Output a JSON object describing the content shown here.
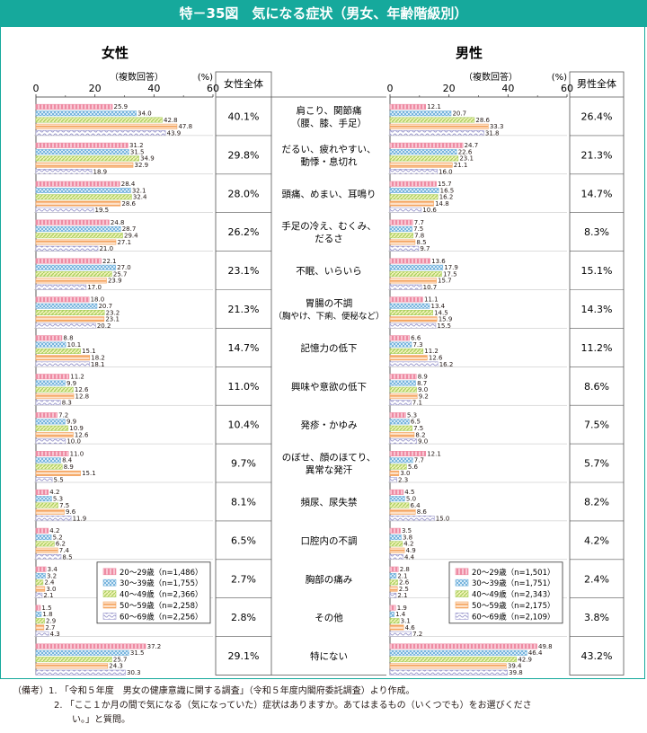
{
  "title": "特－35図　気になる症状（男女、年齢階級別）",
  "colors": {
    "accent": "#16a99c",
    "series": [
      "#ee8ba3",
      "#78b4dd",
      "#a8cf5e",
      "#f4a45f",
      "#9a97cc"
    ]
  },
  "panels": {
    "female": {
      "heading": "女性",
      "note": "（複数回答）",
      "unit": "(%)",
      "total_header": "女性全体"
    },
    "male": {
      "heading": "男性",
      "note": "（複数回答）",
      "unit": "(%)",
      "total_header": "男性全体"
    }
  },
  "axis_ticks": [
    "0",
    "20",
    "40",
    "60"
  ],
  "notes": [
    {
      "prefix": "（備考）",
      "num": "1.",
      "text": "「令和５年度　男女の健康意識に関する調査」（令和５年度内閣府委託調査）より作成。"
    },
    {
      "prefix": "",
      "num": "2.",
      "text": "「ここ１か月の間で気になる（気になっていた）症状はありますか。あてはまるもの（いくつでも）をお選びくださ"
    },
    {
      "prefix": "",
      "num": "",
      "text": "い。」と質問。"
    }
  ],
  "chart_data": [
    {
      "type": "bar",
      "orientation": "horizontal",
      "panel": "女性",
      "xlim": [
        0,
        60
      ],
      "categories": [
        "肩こり、関節痛\n（腰、膝、手足）",
        "だるい、疲れやすい、\n動悸・息切れ",
        "頭痛、めまい、耳鳴り",
        "手足の冷え、むくみ、\nだるさ",
        "不眠、いらいら",
        "胃腸の不調\n（胸やけ、下痢、便秘など）",
        "記憶力の低下",
        "興味や意欲の低下",
        "発疹・かゆみ",
        "のぼせ、顔のほてり、\n異常な発汗",
        "頻尿、尿失禁",
        "口腔内の不調",
        "胸部の痛み",
        "その他",
        "特にない"
      ],
      "series": [
        {
          "name": "20～29歳（n=1,486）",
          "values": [
            25.9,
            31.2,
            28.4,
            24.8,
            22.1,
            18.0,
            8.8,
            11.2,
            7.2,
            11.0,
            4.2,
            4.2,
            3.4,
            1.5,
            37.2
          ]
        },
        {
          "name": "30～39歳（n=1,755）",
          "values": [
            34.0,
            31.5,
            32.1,
            28.7,
            27.0,
            20.7,
            10.1,
            9.9,
            9.9,
            8.4,
            5.3,
            5.2,
            3.2,
            1.8,
            31.5
          ]
        },
        {
          "name": "40～49歳（n=2,366）",
          "values": [
            42.8,
            34.9,
            32.4,
            29.4,
            25.7,
            23.2,
            15.1,
            12.6,
            10.9,
            8.9,
            7.5,
            6.2,
            2.4,
            2.9,
            25.7
          ]
        },
        {
          "name": "50～59歳（n=2,258）",
          "values": [
            47.8,
            32.9,
            28.6,
            27.1,
            23.9,
            23.1,
            18.2,
            12.8,
            12.6,
            15.1,
            9.6,
            7.4,
            3.0,
            2.7,
            24.3
          ]
        },
        {
          "name": "60～69歳（n=2,256）",
          "values": [
            43.9,
            18.9,
            19.5,
            21.0,
            17.0,
            20.2,
            18.1,
            8.3,
            10.0,
            5.5,
            11.9,
            8.5,
            2.1,
            4.3,
            30.3
          ]
        }
      ],
      "totals": [
        "40.1%",
        "29.8%",
        "28.0%",
        "26.2%",
        "23.1%",
        "21.3%",
        "14.7%",
        "11.0%",
        "10.4%",
        "9.7%",
        "8.1%",
        "6.5%",
        "2.7%",
        "2.8%",
        "29.1%"
      ]
    },
    {
      "type": "bar",
      "orientation": "horizontal",
      "panel": "男性",
      "xlim": [
        0,
        60
      ],
      "categories": [
        "肩こり、関節痛\n（腰、膝、手足）",
        "だるい、疲れやすい、\n動悸・息切れ",
        "頭痛、めまい、耳鳴り",
        "手足の冷え、むくみ、\nだるさ",
        "不眠、いらいら",
        "胃腸の不調\n（胸やけ、下痢、便秘など）",
        "記憶力の低下",
        "興味や意欲の低下",
        "発疹・かゆみ",
        "のぼせ、顔のほてり、\n異常な発汗",
        "頻尿、尿失禁",
        "口腔内の不調",
        "胸部の痛み",
        "その他",
        "特にない"
      ],
      "series": [
        {
          "name": "20～29歳（n=1,501）",
          "values": [
            12.1,
            24.7,
            15.7,
            7.7,
            13.6,
            11.1,
            6.6,
            8.9,
            5.3,
            12.1,
            4.5,
            3.5,
            2.8,
            1.9,
            49.8
          ]
        },
        {
          "name": "30～39歳（n=1,751）",
          "values": [
            20.7,
            22.6,
            16.5,
            7.5,
            17.9,
            13.4,
            7.3,
            8.7,
            6.5,
            7.7,
            5.0,
            3.8,
            2.1,
            1.4,
            46.4
          ]
        },
        {
          "name": "40～49歳（n=2,343）",
          "values": [
            28.6,
            23.1,
            16.2,
            7.8,
            17.5,
            14.5,
            11.2,
            9.0,
            7.5,
            5.6,
            6.4,
            4.2,
            2.6,
            3.1,
            42.9
          ]
        },
        {
          "name": "50～59歳（n=2,175）",
          "values": [
            33.3,
            21.1,
            14.8,
            8.5,
            15.7,
            15.9,
            12.6,
            9.2,
            8.2,
            3.0,
            8.6,
            4.9,
            2.5,
            4.6,
            39.4
          ]
        },
        {
          "name": "60～69歳（n=2,109）",
          "values": [
            31.8,
            16.0,
            10.6,
            9.7,
            10.7,
            15.5,
            16.2,
            7.1,
            9.0,
            2.3,
            15.0,
            4.4,
            2.1,
            7.2,
            39.8
          ]
        }
      ],
      "totals": [
        "26.4%",
        "21.3%",
        "14.7%",
        "8.3%",
        "15.1%",
        "14.3%",
        "11.2%",
        "8.6%",
        "7.5%",
        "5.7%",
        "8.2%",
        "4.2%",
        "2.4%",
        "3.8%",
        "43.2%"
      ]
    }
  ]
}
